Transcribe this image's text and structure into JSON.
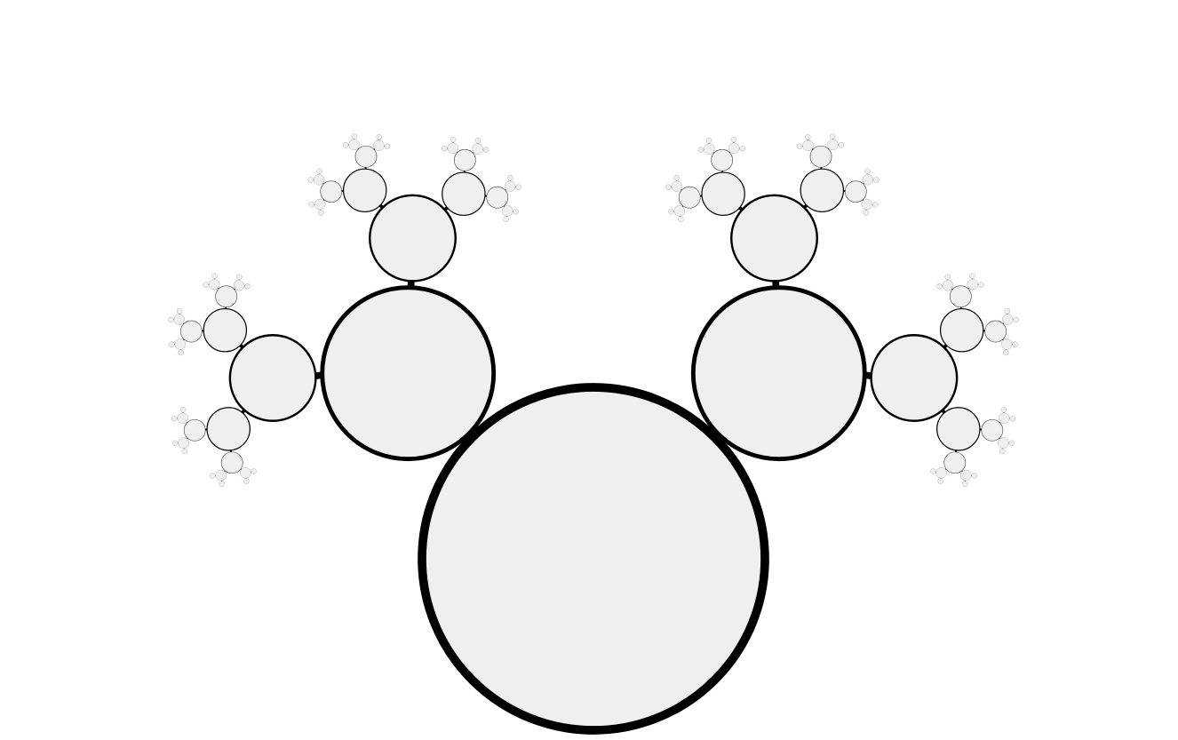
{
  "diagram": {
    "kind": "recursive-circle-tree",
    "branching": 2,
    "levels_visible": 6,
    "colors": {
      "background": "#ffffff",
      "node_fill": "#efefef",
      "stroke": "#000000"
    }
  }
}
